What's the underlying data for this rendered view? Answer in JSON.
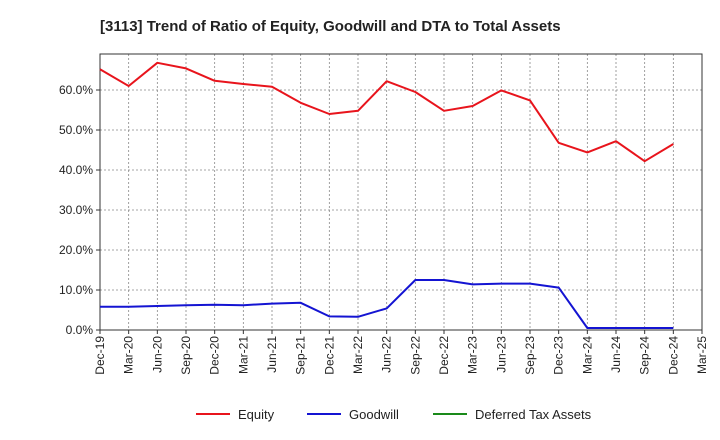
{
  "chart_data": {
    "type": "line",
    "title": "[3113]  Trend of Ratio of Equity, Goodwill and DTA to Total Assets",
    "xlabel": "",
    "ylabel": "",
    "ylim": [
      0,
      69
    ],
    "yticks": [
      0,
      10,
      20,
      30,
      40,
      50,
      60
    ],
    "ytick_labels": [
      "0.0%",
      "10.0%",
      "20.0%",
      "30.0%",
      "40.0%",
      "50.0%",
      "60.0%"
    ],
    "grid": true,
    "legend_position": "bottom",
    "categories": [
      "Dec-19",
      "Mar-20",
      "Jun-20",
      "Sep-20",
      "Dec-20",
      "Mar-21",
      "Jun-21",
      "Sep-21",
      "Dec-21",
      "Mar-22",
      "Jun-22",
      "Sep-22",
      "Dec-22",
      "Mar-23",
      "Jun-23",
      "Sep-23",
      "Dec-23",
      "Mar-24",
      "Jun-24",
      "Sep-24",
      "Dec-24",
      "Mar-25"
    ],
    "series": [
      {
        "name": "Equity",
        "color": "#e8141c",
        "values": [
          65.2,
          61.0,
          66.8,
          65.4,
          62.3,
          61.5,
          60.8,
          56.8,
          54.0,
          54.8,
          62.2,
          59.5,
          54.8,
          56.0,
          59.9,
          57.4,
          46.8,
          44.4,
          47.2,
          42.2,
          46.5,
          null
        ]
      },
      {
        "name": "Goodwill",
        "color": "#1414d2",
        "values": [
          5.8,
          5.8,
          6.0,
          6.2,
          6.3,
          6.2,
          6.6,
          6.8,
          3.4,
          3.3,
          5.4,
          12.5,
          12.5,
          11.4,
          11.6,
          11.6,
          10.6,
          0.5,
          0.5,
          0.5,
          0.5,
          null
        ]
      },
      {
        "name": "Deferred Tax Assets",
        "color": "#1a8a1a",
        "values": [
          null,
          null,
          null,
          null,
          null,
          null,
          null,
          null,
          null,
          null,
          null,
          null,
          null,
          null,
          null,
          null,
          null,
          null,
          null,
          null,
          null,
          null
        ]
      }
    ]
  }
}
